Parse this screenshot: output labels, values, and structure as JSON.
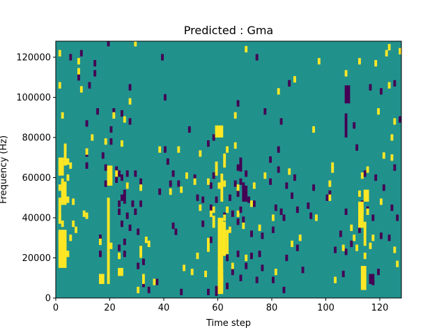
{
  "chart_data": {
    "type": "heatmap",
    "title": "Predicted : Gma",
    "xlabel": "Time step",
    "ylabel": "Frequency (Hz)",
    "xlim": [
      0,
      128
    ],
    "ylim": [
      0,
      128000
    ],
    "x_ticks": [
      0,
      20,
      40,
      60,
      80,
      100,
      120
    ],
    "y_ticks": [
      0,
      20000,
      40000,
      60000,
      80000,
      100000,
      120000
    ],
    "n_time_steps": 128,
    "n_freq_bins": 128,
    "colors": {
      "low": "#440154",
      "mid": "#21918c",
      "high": "#fde725"
    },
    "background_value": "mid",
    "grid": false,
    "low_cells": [
      [
        5,
        120000
      ],
      [
        8,
        110000
      ],
      [
        9,
        122000
      ],
      [
        11,
        87000
      ],
      [
        11,
        72000
      ],
      [
        11,
        66000
      ],
      [
        12,
        106000
      ],
      [
        14,
        117000
      ],
      [
        14,
        112000
      ],
      [
        15,
        93000
      ],
      [
        16,
        30000
      ],
      [
        16,
        22000
      ],
      [
        17,
        71000
      ],
      [
        18,
        65000
      ],
      [
        18,
        57000
      ],
      [
        19,
        127000
      ],
      [
        20,
        84000
      ],
      [
        20,
        78000
      ],
      [
        21,
        93000
      ],
      [
        22,
        64000
      ],
      [
        22,
        59000
      ],
      [
        23,
        62000
      ],
      [
        23,
        47000
      ],
      [
        23,
        43000
      ],
      [
        23,
        25000
      ],
      [
        24,
        92000
      ],
      [
        24,
        60000
      ],
      [
        24,
        50000
      ],
      [
        24,
        37000
      ],
      [
        25,
        28000
      ],
      [
        25,
        22000
      ],
      [
        26,
        62000
      ],
      [
        26,
        56000
      ],
      [
        26,
        41000
      ],
      [
        27,
        105000
      ],
      [
        27,
        88000
      ],
      [
        27,
        35000
      ],
      [
        28,
        47000
      ],
      [
        29,
        62000
      ],
      [
        29,
        43000
      ],
      [
        30,
        33000
      ],
      [
        30,
        16000
      ],
      [
        31,
        58000
      ],
      [
        31,
        47000
      ],
      [
        32,
        18000
      ],
      [
        32,
        7000
      ],
      [
        34,
        4000
      ],
      [
        37,
        8000
      ],
      [
        38,
        53000
      ],
      [
        39,
        120000
      ],
      [
        40,
        74000
      ],
      [
        40,
        100000
      ],
      [
        41,
        68000
      ],
      [
        42,
        57000
      ],
      [
        43,
        62000
      ],
      [
        43,
        36000
      ],
      [
        44,
        33000
      ],
      [
        45,
        57000
      ],
      [
        46,
        3000
      ],
      [
        47,
        15000
      ],
      [
        49,
        84000
      ],
      [
        51,
        60000
      ],
      [
        52,
        50000
      ],
      [
        54,
        49000
      ],
      [
        54,
        37000
      ],
      [
        56,
        77000
      ],
      [
        56,
        3000
      ],
      [
        57,
        56000
      ],
      [
        57,
        45000
      ],
      [
        57,
        29000
      ],
      [
        58,
        61000
      ],
      [
        58,
        80000
      ],
      [
        59,
        49000
      ],
      [
        60,
        38000
      ],
      [
        61,
        36000
      ],
      [
        61,
        25000
      ],
      [
        61,
        11000
      ],
      [
        62,
        25000
      ],
      [
        62,
        41000
      ],
      [
        63,
        20000
      ],
      [
        63,
        6000
      ],
      [
        64,
        50000
      ],
      [
        64,
        34000
      ],
      [
        65,
        42000
      ],
      [
        65,
        13000
      ],
      [
        66,
        57000
      ],
      [
        67,
        97000
      ],
      [
        67,
        65000
      ],
      [
        67,
        52000
      ],
      [
        67,
        38000
      ],
      [
        67,
        22000
      ],
      [
        68,
        58000
      ],
      [
        68,
        44000
      ],
      [
        68,
        10000
      ],
      [
        69,
        56000
      ],
      [
        69,
        39000
      ],
      [
        70,
        62000
      ],
      [
        70,
        16000
      ],
      [
        71,
        49000
      ],
      [
        72,
        32000
      ],
      [
        72,
        21000
      ],
      [
        73,
        47000
      ],
      [
        74,
        120000
      ],
      [
        74,
        9000
      ],
      [
        75,
        22000
      ],
      [
        76,
        31000
      ],
      [
        76,
        15000
      ],
      [
        77,
        93000
      ],
      [
        79,
        69000
      ],
      [
        79,
        58000
      ],
      [
        80,
        9000
      ],
      [
        80,
        34000
      ],
      [
        81,
        45000
      ],
      [
        82,
        74000
      ],
      [
        82,
        64000
      ],
      [
        83,
        43000
      ],
      [
        83,
        88000
      ],
      [
        84,
        40000
      ],
      [
        84,
        4000
      ],
      [
        85,
        56000
      ],
      [
        85,
        20000
      ],
      [
        86,
        107000
      ],
      [
        87,
        51000
      ],
      [
        88,
        60000
      ],
      [
        89,
        44000
      ],
      [
        89,
        25000
      ],
      [
        91,
        14000
      ],
      [
        93,
        46000
      ],
      [
        94,
        41000
      ],
      [
        95,
        55000
      ],
      [
        100,
        50000
      ],
      [
        101,
        52000
      ],
      [
        103,
        24000
      ],
      [
        105,
        32000
      ],
      [
        106,
        12000
      ],
      [
        107,
        43000
      ],
      [
        107,
        23000
      ],
      [
        109,
        27000
      ],
      [
        110,
        86000
      ],
      [
        111,
        75000
      ],
      [
        112,
        34000
      ],
      [
        113,
        47000
      ],
      [
        114,
        62000
      ],
      [
        115,
        44000
      ],
      [
        116,
        105000
      ],
      [
        117,
        40000
      ],
      [
        117,
        8000
      ],
      [
        118,
        60000
      ],
      [
        119,
        13000
      ],
      [
        120,
        103000
      ],
      [
        120,
        31000
      ],
      [
        121,
        55000
      ],
      [
        123,
        30000
      ],
      [
        124,
        45000
      ],
      [
        125,
        107000
      ],
      [
        125,
        65000
      ],
      [
        126,
        40000
      ],
      [
        127,
        89000
      ]
    ],
    "high_cells": [
      [
        1,
        122000
      ],
      [
        1,
        106000
      ],
      [
        1,
        67000
      ],
      [
        1,
        63000
      ],
      [
        1,
        55000
      ],
      [
        1,
        40000
      ],
      [
        1,
        31000
      ],
      [
        2,
        91000
      ],
      [
        2,
        58000
      ],
      [
        2,
        48000
      ],
      [
        2,
        37000
      ],
      [
        3,
        48000
      ],
      [
        3,
        24000
      ],
      [
        3,
        28000
      ],
      [
        4,
        68000
      ],
      [
        4,
        60000
      ],
      [
        4,
        49000
      ],
      [
        4,
        22000
      ],
      [
        5,
        30000
      ],
      [
        5,
        66000
      ],
      [
        6,
        48000
      ],
      [
        6,
        37000
      ],
      [
        7,
        34000
      ],
      [
        8,
        118000
      ],
      [
        8,
        113000
      ],
      [
        9,
        104000
      ],
      [
        10,
        42000
      ],
      [
        11,
        73000
      ],
      [
        11,
        41000
      ],
      [
        13,
        80000
      ],
      [
        16,
        28000
      ],
      [
        18,
        78000
      ],
      [
        20,
        26000
      ],
      [
        21,
        91000
      ],
      [
        22,
        62000
      ],
      [
        23,
        21000
      ],
      [
        24,
        77000
      ],
      [
        25,
        89000
      ],
      [
        26,
        56000
      ],
      [
        27,
        98000
      ],
      [
        29,
        127000
      ],
      [
        30,
        4000
      ],
      [
        31,
        55000
      ],
      [
        33,
        29000
      ],
      [
        34,
        27000
      ],
      [
        36,
        8000
      ],
      [
        38,
        74000
      ],
      [
        42,
        53000
      ],
      [
        45,
        74000
      ],
      [
        46,
        54000
      ],
      [
        47,
        15000
      ],
      [
        48,
        61000
      ],
      [
        50,
        13000
      ],
      [
        51,
        58000
      ],
      [
        52,
        21000
      ],
      [
        53,
        72000
      ],
      [
        53,
        45000
      ],
      [
        55,
        12000
      ],
      [
        56,
        58000
      ],
      [
        57,
        42000
      ],
      [
        58,
        44000
      ],
      [
        60,
        56000
      ],
      [
        60,
        23000
      ],
      [
        61,
        32000
      ],
      [
        61,
        10000
      ],
      [
        62,
        57000
      ],
      [
        62,
        40000
      ],
      [
        63,
        74000
      ],
      [
        63,
        44000
      ],
      [
        64,
        34000
      ],
      [
        65,
        16000
      ],
      [
        66,
        91000
      ],
      [
        66,
        76000
      ],
      [
        67,
        55000
      ],
      [
        67,
        42000
      ],
      [
        69,
        36000
      ],
      [
        70,
        124000
      ],
      [
        70,
        20000
      ],
      [
        72,
        47000
      ],
      [
        73,
        56000
      ],
      [
        75,
        35000
      ],
      [
        77,
        61000
      ],
      [
        80,
        40000
      ],
      [
        81,
        13000
      ],
      [
        82,
        103000
      ],
      [
        86,
        63000
      ],
      [
        87,
        27000
      ],
      [
        88,
        109000
      ],
      [
        90,
        30000
      ],
      [
        95,
        84000
      ],
      [
        96,
        40000
      ],
      [
        97,
        118000
      ],
      [
        101,
        57000
      ],
      [
        101,
        50000
      ],
      [
        102,
        66000
      ],
      [
        102,
        64000
      ],
      [
        103,
        9000
      ],
      [
        106,
        25000
      ],
      [
        107,
        112000
      ],
      [
        109,
        35000
      ],
      [
        110,
        30000
      ],
      [
        111,
        25000
      ],
      [
        112,
        118000
      ],
      [
        112,
        52000
      ],
      [
        113,
        61000
      ],
      [
        113,
        44000
      ],
      [
        114,
        21000
      ],
      [
        114,
        9000
      ],
      [
        115,
        43000
      ],
      [
        115,
        64000
      ],
      [
        116,
        26000
      ],
      [
        117,
        30000
      ],
      [
        118,
        117000
      ],
      [
        119,
        93000
      ],
      [
        120,
        48000
      ],
      [
        121,
        71000
      ],
      [
        122,
        122000
      ],
      [
        123,
        125000
      ],
      [
        123,
        106000
      ],
      [
        124,
        70000
      ],
      [
        124,
        80000
      ],
      [
        125,
        88000
      ],
      [
        125,
        24000
      ],
      [
        126,
        17000
      ],
      [
        127,
        123000
      ]
    ],
    "high_spans": [
      [
        1,
        2,
        26000,
        32000
      ],
      [
        1,
        4,
        15000,
        34000
      ],
      [
        1,
        2,
        37000,
        50000
      ],
      [
        1,
        3,
        61000,
        70000
      ],
      [
        2,
        4,
        48000,
        58000
      ],
      [
        3,
        4,
        66000,
        77000
      ],
      [
        16,
        18,
        7000,
        12000
      ],
      [
        19,
        20,
        7000,
        50000
      ],
      [
        19,
        21,
        56000,
        66000
      ],
      [
        23,
        25,
        11000,
        15000
      ],
      [
        31,
        32,
        20000,
        26000
      ],
      [
        32,
        33,
        7000,
        12000
      ],
      [
        56,
        57,
        23000,
        30000
      ],
      [
        58,
        59,
        35000,
        41000
      ],
      [
        59,
        60,
        61000,
        68000
      ],
      [
        60,
        62,
        2000,
        14000
      ],
      [
        60,
        62,
        4000,
        40000
      ],
      [
        60,
        63,
        21000,
        38000
      ],
      [
        61,
        62,
        48000,
        62000
      ],
      [
        62,
        63,
        65000,
        72000
      ],
      [
        63,
        64,
        22000,
        34000
      ],
      [
        59,
        62,
        80000,
        86000
      ],
      [
        112,
        114,
        35000,
        48000
      ],
      [
        113,
        115,
        4000,
        16000
      ],
      [
        114,
        115,
        26000,
        38000
      ],
      [
        114,
        116,
        48000,
        54000
      ]
    ],
    "low_spans": [
      [
        59,
        60,
        1000,
        6000
      ],
      [
        107,
        108,
        80000,
        92000
      ],
      [
        107,
        109,
        97000,
        106000
      ],
      [
        69,
        71,
        48000,
        56000
      ],
      [
        68,
        69,
        63000,
        70000
      ],
      [
        25,
        26,
        47000,
        54000
      ],
      [
        116,
        118,
        7000,
        12000
      ]
    ]
  }
}
